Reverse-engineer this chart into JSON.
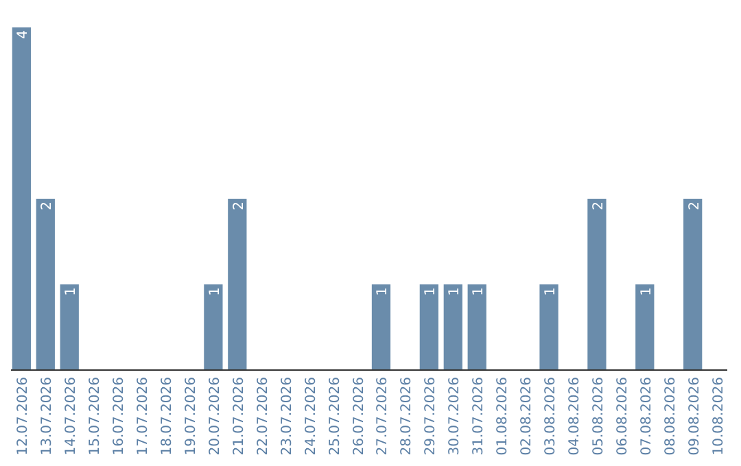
{
  "chart_data": {
    "type": "bar",
    "categories": [
      "12.07.2026",
      "13.07.2026",
      "14.07.2026",
      "15.07.2026",
      "16.07.2026",
      "17.07.2026",
      "18.07.2026",
      "19.07.2026",
      "20.07.2026",
      "21.07.2026",
      "22.07.2026",
      "23.07.2026",
      "24.07.2026",
      "25.07.2026",
      "26.07.2026",
      "27.07.2026",
      "28.07.2026",
      "29.07.2026",
      "30.07.2026",
      "31.07.2026",
      "01.08.2026",
      "02.08.2026",
      "03.08.2026",
      "04.08.2026",
      "05.08.2026",
      "06.08.2026",
      "07.08.2026",
      "08.08.2026",
      "09.08.2026",
      "10.08.2026"
    ],
    "values": [
      4,
      2,
      1,
      0,
      0,
      0,
      0,
      0,
      1,
      2,
      0,
      0,
      0,
      0,
      0,
      1,
      0,
      1,
      1,
      1,
      0,
      0,
      1,
      0,
      2,
      0,
      1,
      0,
      2,
      0
    ],
    "value_labels": [
      "4",
      "2",
      "1",
      null,
      null,
      null,
      null,
      null,
      "1",
      "2",
      null,
      null,
      null,
      null,
      null,
      "1",
      null,
      "1",
      "1",
      "1",
      null,
      null,
      "1",
      null,
      "2",
      null,
      "1",
      null,
      "2",
      null
    ],
    "color": "#6a8cab"
  }
}
